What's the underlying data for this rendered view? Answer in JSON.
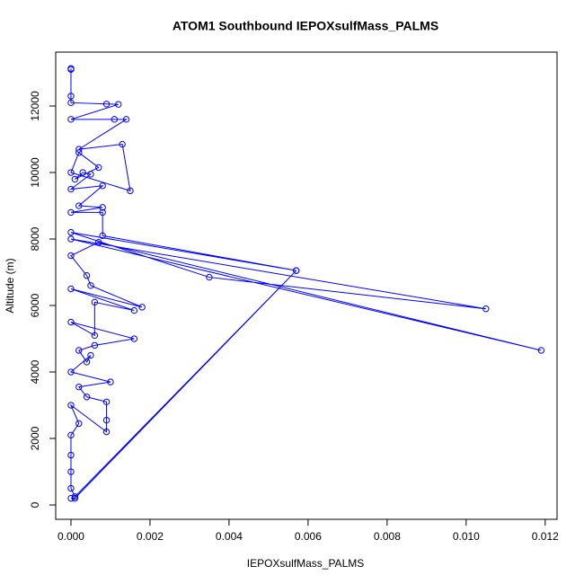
{
  "chart_data": {
    "type": "line",
    "title": "ATOM1 Southbound IEPOXsulfMass_PALMS",
    "x_label": "IEPOXsulfMass_PALMS",
    "y_label": "Altitude (m)",
    "color": "#0000ff",
    "x": [
      0,
      0,
      0,
      0,
      0.0009,
      0.0012,
      0,
      0.0011,
      0.0014,
      0.0002,
      0.0013,
      0.0015,
      0,
      0.0002,
      0.0007,
      0.0001,
      0.0003,
      0.0005,
      0,
      0.0008,
      0.0002,
      0.0008,
      0,
      0.0008,
      0.0008,
      0.0057,
      0,
      0.0035,
      0.0105,
      0,
      0.0119,
      0.0007,
      0,
      0.0004,
      0.0005,
      0.0018,
      0,
      0.0016,
      0.0006,
      0.0006,
      0,
      0.0016,
      0.0006,
      0.0002,
      0.0004,
      0.0005,
      0,
      0.001,
      0.0002,
      0.0004,
      0.0009,
      0.0009,
      0.0009,
      0,
      0.0002,
      0,
      0,
      0,
      0,
      0.0001,
      0.0057,
      0.0001,
      0
    ],
    "values": [
      13130,
      13100,
      12300,
      12100,
      12060,
      12050,
      11600,
      11600,
      11600,
      10700,
      10850,
      9450,
      10000,
      10600,
      10150,
      9800,
      10000,
      9950,
      9500,
      9600,
      9000,
      8950,
      8800,
      8800,
      8100,
      7050,
      8200,
      6850,
      5900,
      8000,
      4650,
      7900,
      7500,
      6900,
      6600,
      5950,
      6500,
      5850,
      6100,
      5100,
      5500,
      5000,
      4800,
      4650,
      4300,
      4500,
      4000,
      3700,
      3550,
      3250,
      3100,
      2550,
      2200,
      3000,
      2450,
      2100,
      1500,
      1000,
      500,
      250,
      7050,
      200,
      200
    ],
    "xlim": [
      -0.000386,
      0.0123
    ],
    "ylim": [
      -432,
      13622
    ],
    "xticks": [
      {
        "value": 0,
        "label": "0.000"
      },
      {
        "value": 0.002,
        "label": "0.002"
      },
      {
        "value": 0.004,
        "label": "0.004"
      },
      {
        "value": 0.006,
        "label": "0.006"
      },
      {
        "value": 0.008,
        "label": "0.008"
      },
      {
        "value": 0.01,
        "label": "0.010"
      },
      {
        "value": 0.012,
        "label": "0.012"
      }
    ],
    "yticks": [
      0,
      2000,
      4000,
      6000,
      8000,
      10000,
      12000
    ]
  }
}
